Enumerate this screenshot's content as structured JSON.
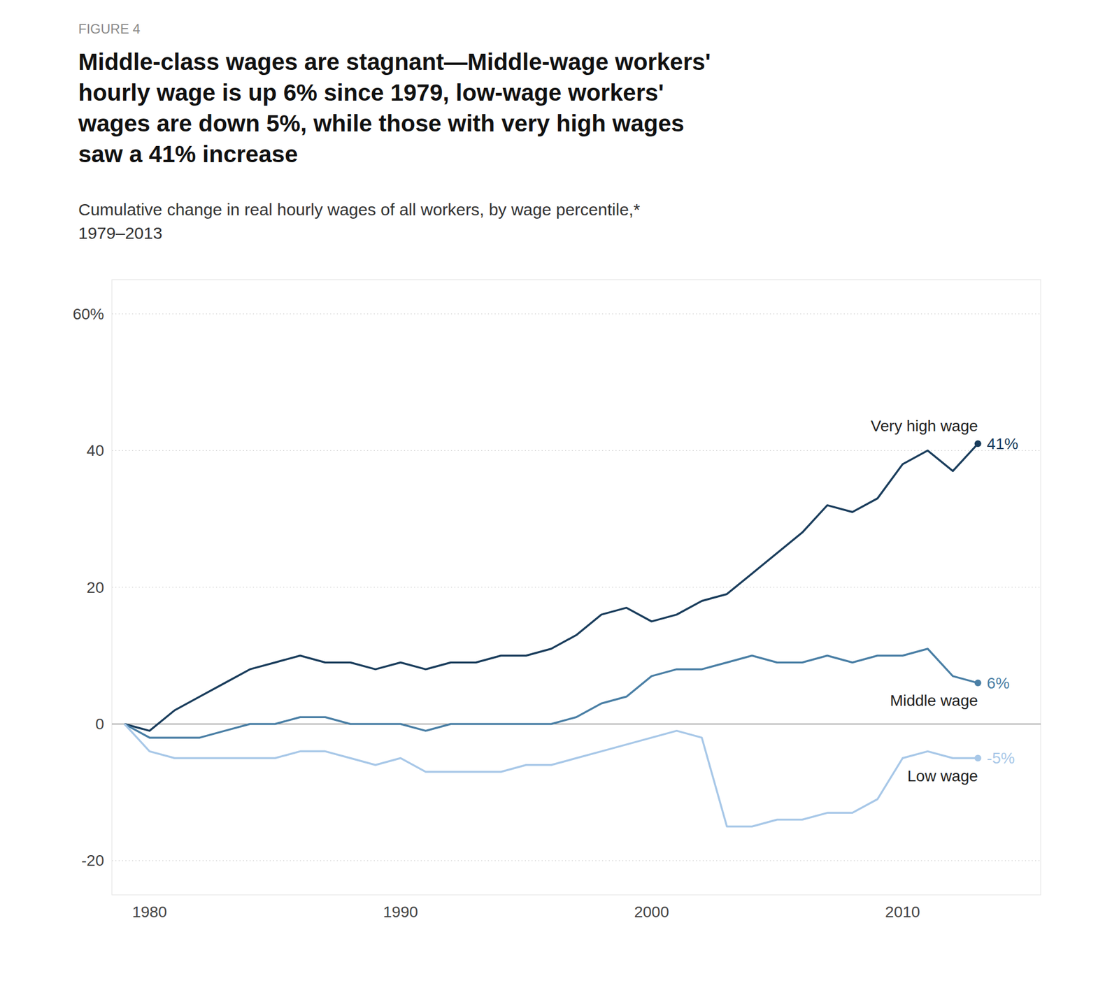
{
  "chart_data": {
    "type": "line",
    "figure_label": "FIGURE 4",
    "title": "Middle-class wages are stagnant—Middle-wage workers'\nhourly wage is up 6% since 1979, low-wage workers'\nwages are down 5%, while those with very high wages\nsaw a 41% increase",
    "subtitle": "Cumulative change in real hourly wages of all workers, by wage percentile,*\n1979–2013",
    "x": [
      1979,
      1980,
      1981,
      1982,
      1983,
      1984,
      1985,
      1986,
      1987,
      1988,
      1989,
      1990,
      1991,
      1992,
      1993,
      1994,
      1995,
      1996,
      1997,
      1998,
      1999,
      2000,
      2001,
      2002,
      2003,
      2004,
      2005,
      2006,
      2007,
      2008,
      2009,
      2010,
      2011,
      2012,
      2013
    ],
    "series": [
      {
        "name": "Very high wage",
        "color": "#1a3d5c",
        "values": [
          0,
          -1,
          2,
          4,
          6,
          8,
          9,
          10,
          9,
          9,
          8,
          9,
          8,
          9,
          9,
          10,
          10,
          11,
          13,
          16,
          17,
          15,
          16,
          18,
          19,
          22,
          25,
          28,
          32,
          31,
          33,
          38,
          40,
          37,
          41
        ],
        "value_labels": [
          null,
          null,
          null,
          null,
          null,
          null,
          null,
          null,
          null,
          null,
          null,
          null,
          null,
          null,
          null,
          null,
          null,
          null,
          null,
          null,
          null,
          null,
          null,
          null,
          null,
          null,
          null,
          null,
          null,
          null,
          null,
          null,
          null,
          null,
          "41%"
        ]
      },
      {
        "name": "Middle wage",
        "color": "#4a7fa5",
        "values": [
          0,
          -2,
          -2,
          -2,
          -1,
          0,
          0,
          1,
          1,
          0,
          0,
          0,
          -1,
          0,
          0,
          0,
          0,
          0,
          1,
          3,
          4,
          7,
          8,
          8,
          9,
          10,
          9,
          9,
          10,
          9,
          10,
          10,
          11,
          7,
          6
        ],
        "value_labels": [
          null,
          null,
          null,
          null,
          null,
          null,
          null,
          null,
          null,
          null,
          null,
          null,
          null,
          null,
          null,
          null,
          null,
          null,
          null,
          null,
          null,
          null,
          null,
          null,
          null,
          null,
          null,
          null,
          null,
          null,
          null,
          null,
          null,
          null,
          "6%"
        ]
      },
      {
        "name": "Low wage",
        "color": "#a8c8e8",
        "values": [
          0,
          -4,
          -5,
          -5,
          -5,
          -5,
          -5,
          -4,
          -4,
          -5,
          -6,
          -5,
          -7,
          -7,
          -7,
          -7,
          -6,
          -6,
          -5,
          -4,
          -3,
          -2,
          -1,
          -2,
          -15,
          -15,
          -14,
          -14,
          -13,
          -13,
          -11,
          -5,
          -4,
          -5,
          -5
        ],
        "value_labels": [
          null,
          null,
          null,
          null,
          null,
          null,
          null,
          null,
          null,
          null,
          null,
          null,
          null,
          null,
          null,
          null,
          null,
          null,
          null,
          null,
          null,
          null,
          null,
          null,
          null,
          null,
          null,
          null,
          null,
          null,
          null,
          null,
          null,
          null,
          "-5%"
        ]
      }
    ],
    "xlim": [
      1978.5,
      2015.5
    ],
    "xticks": [
      1980,
      1990,
      2000,
      2010
    ],
    "ylim": [
      -25,
      65
    ],
    "yticks": [
      -20,
      0,
      20,
      40,
      {
        "value": 60,
        "label": "60%"
      }
    ],
    "grid": true
  }
}
